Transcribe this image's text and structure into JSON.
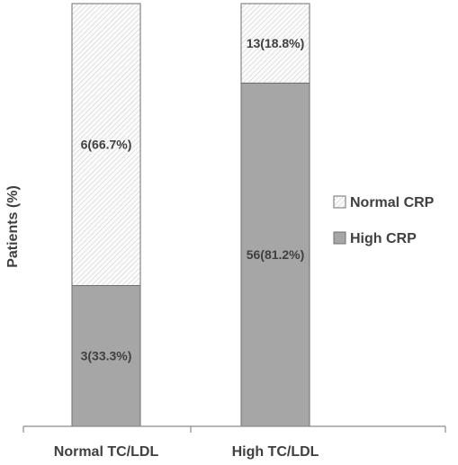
{
  "chart_data": {
    "type": "bar",
    "stacked": true,
    "categories": [
      "Normal TC/LDL",
      "High TC/LDL"
    ],
    "series": [
      {
        "name": "High CRP",
        "values": [
          33.3,
          81.2
        ],
        "labels": [
          "3(33.3%)",
          "56(81.2%)"
        ],
        "color": "#a6a6a6",
        "pattern": "solid"
      },
      {
        "name": "Normal CRP",
        "values": [
          66.7,
          18.8
        ],
        "labels": [
          "6(66.7%)",
          "13(18.8%)"
        ],
        "color": "#f2f2f2",
        "pattern": "diagonal-hatch"
      }
    ],
    "title": "",
    "xlabel": "",
    "ylabel": "Patients (%)",
    "ylim": [
      0,
      100
    ],
    "grid": false,
    "legend": {
      "placement": "right",
      "entries": [
        "Normal CRP",
        "High CRP"
      ]
    }
  }
}
